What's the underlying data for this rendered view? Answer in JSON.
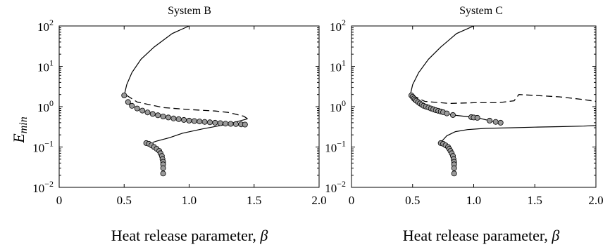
{
  "chart_data": [
    {
      "type": "line",
      "title": "System B",
      "xlabel": "Heat release parameter, ",
      "xlabel_symbol": "β",
      "ylabel": "E",
      "ylabel_sub": "min",
      "xlim": [
        0,
        2.0
      ],
      "ylim": [
        0.01,
        100
      ],
      "yscale": "log",
      "grid": false,
      "xticks": [
        "0",
        "0.5",
        "1.0",
        "1.5",
        "2.0"
      ],
      "yticks": [
        {
          "base": "10",
          "exp": "−2"
        },
        {
          "base": "10",
          "exp": "−1"
        },
        {
          "base": "10",
          "exp": "0"
        },
        {
          "base": "10",
          "exp": "1"
        },
        {
          "base": "10",
          "exp": "2"
        }
      ],
      "series": [
        {
          "style": "solid",
          "x": [
            0.5,
            0.52,
            0.56,
            0.63,
            0.73,
            0.87,
            1.0
          ],
          "y": [
            1.9,
            3.5,
            7,
            15,
            30,
            65,
            100
          ]
        },
        {
          "style": "dashed",
          "x": [
            0.52,
            0.6,
            0.8,
            1.0,
            1.2,
            1.3,
            1.42,
            1.45
          ],
          "y": [
            1.9,
            1.3,
            0.95,
            0.85,
            0.78,
            0.72,
            0.58,
            0.5
          ]
        },
        {
          "style": "solid",
          "x": [
            1.45,
            1.3,
            1.1,
            0.95,
            0.85,
            0.75,
            0.72
          ],
          "y": [
            0.5,
            0.37,
            0.28,
            0.22,
            0.17,
            0.14,
            0.13
          ]
        },
        {
          "style": "markers",
          "x": [
            0.5,
            0.53,
            0.56,
            0.6,
            0.64,
            0.68,
            0.72,
            0.76,
            0.8,
            0.84,
            0.88,
            0.92,
            0.96,
            1.0,
            1.04,
            1.08,
            1.12,
            1.16,
            1.2,
            1.24,
            1.28,
            1.32,
            1.36,
            1.4,
            1.43
          ],
          "y": [
            1.9,
            1.3,
            1.05,
            0.9,
            0.8,
            0.72,
            0.66,
            0.61,
            0.57,
            0.54,
            0.51,
            0.49,
            0.47,
            0.45,
            0.44,
            0.43,
            0.42,
            0.41,
            0.4,
            0.39,
            0.38,
            0.375,
            0.37,
            0.365,
            0.36
          ]
        },
        {
          "style": "markers-line",
          "x": [
            0.67,
            0.69,
            0.71,
            0.73,
            0.75,
            0.77,
            0.78,
            0.79,
            0.795,
            0.8,
            0.8,
            0.8,
            0.8
          ],
          "y": [
            0.125,
            0.12,
            0.11,
            0.1,
            0.09,
            0.08,
            0.07,
            0.06,
            0.05,
            0.043,
            0.037,
            0.03,
            0.022
          ]
        }
      ]
    },
    {
      "type": "line",
      "title": "System C",
      "xlabel": "Heat release parameter, ",
      "xlabel_symbol": "β",
      "xlim": [
        0,
        2.0
      ],
      "ylim": [
        0.01,
        100
      ],
      "yscale": "log",
      "grid": false,
      "xticks": [
        "0",
        "0.5",
        "1.0",
        "1.5",
        "2.0"
      ],
      "yticks": [
        {
          "base": "10",
          "exp": "−2"
        },
        {
          "base": "10",
          "exp": "−1"
        },
        {
          "base": "10",
          "exp": "0"
        },
        {
          "base": "10",
          "exp": "1"
        },
        {
          "base": "10",
          "exp": "2"
        }
      ],
      "series": [
        {
          "style": "solid",
          "x": [
            0.48,
            0.5,
            0.55,
            0.63,
            0.73,
            0.86,
            1.0
          ],
          "y": [
            1.9,
            3.5,
            7,
            15,
            30,
            65,
            100
          ]
        },
        {
          "style": "dashed",
          "x": [
            0.5,
            0.6,
            0.8,
            1.0,
            1.2,
            1.33,
            1.37,
            1.5,
            1.7,
            1.9,
            2.0
          ],
          "y": [
            1.9,
            1.35,
            1.2,
            1.25,
            1.25,
            1.4,
            2.0,
            1.9,
            1.75,
            1.5,
            1.35
          ]
        },
        {
          "style": "solid",
          "x": [
            0.73,
            0.78,
            0.85,
            0.95,
            1.1,
            1.3,
            1.5,
            1.7,
            1.9,
            2.0
          ],
          "y": [
            0.13,
            0.19,
            0.24,
            0.27,
            0.29,
            0.3,
            0.31,
            0.32,
            0.33,
            0.34
          ]
        },
        {
          "style": "markers-line",
          "x": [
            0.49,
            0.5,
            0.51,
            0.52,
            0.53,
            0.545,
            0.56,
            0.575,
            0.59,
            0.61,
            0.63,
            0.65,
            0.67,
            0.69,
            0.71,
            0.73,
            0.75,
            0.78,
            0.83,
            0.98,
            1.0,
            1.03,
            1.13,
            1.18,
            1.22
          ],
          "y": [
            1.9,
            1.75,
            1.6,
            1.5,
            1.4,
            1.3,
            1.2,
            1.12,
            1.05,
            1.0,
            0.95,
            0.9,
            0.86,
            0.82,
            0.79,
            0.76,
            0.73,
            0.68,
            0.62,
            0.55,
            0.54,
            0.53,
            0.45,
            0.42,
            0.4
          ]
        },
        {
          "style": "markers-line",
          "x": [
            0.73,
            0.75,
            0.77,
            0.79,
            0.8,
            0.81,
            0.82,
            0.83,
            0.835,
            0.84,
            0.84,
            0.84,
            0.84
          ],
          "y": [
            0.125,
            0.12,
            0.11,
            0.1,
            0.09,
            0.08,
            0.07,
            0.06,
            0.05,
            0.043,
            0.037,
            0.03,
            0.022
          ]
        }
      ]
    }
  ]
}
